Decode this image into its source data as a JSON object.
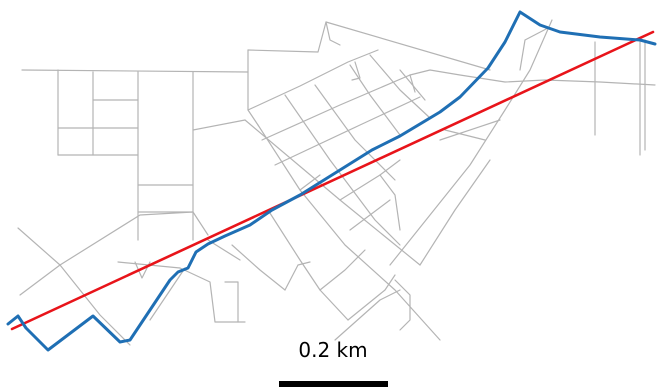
{
  "map": {
    "scale_bar": {
      "label": "0.2 km"
    },
    "colors": {
      "roads": "#b4b4b4",
      "route_blue": "#1f6fb4",
      "route_red": "#e8141a",
      "scale_bar": "#000000",
      "background": "#ffffff"
    }
  }
}
